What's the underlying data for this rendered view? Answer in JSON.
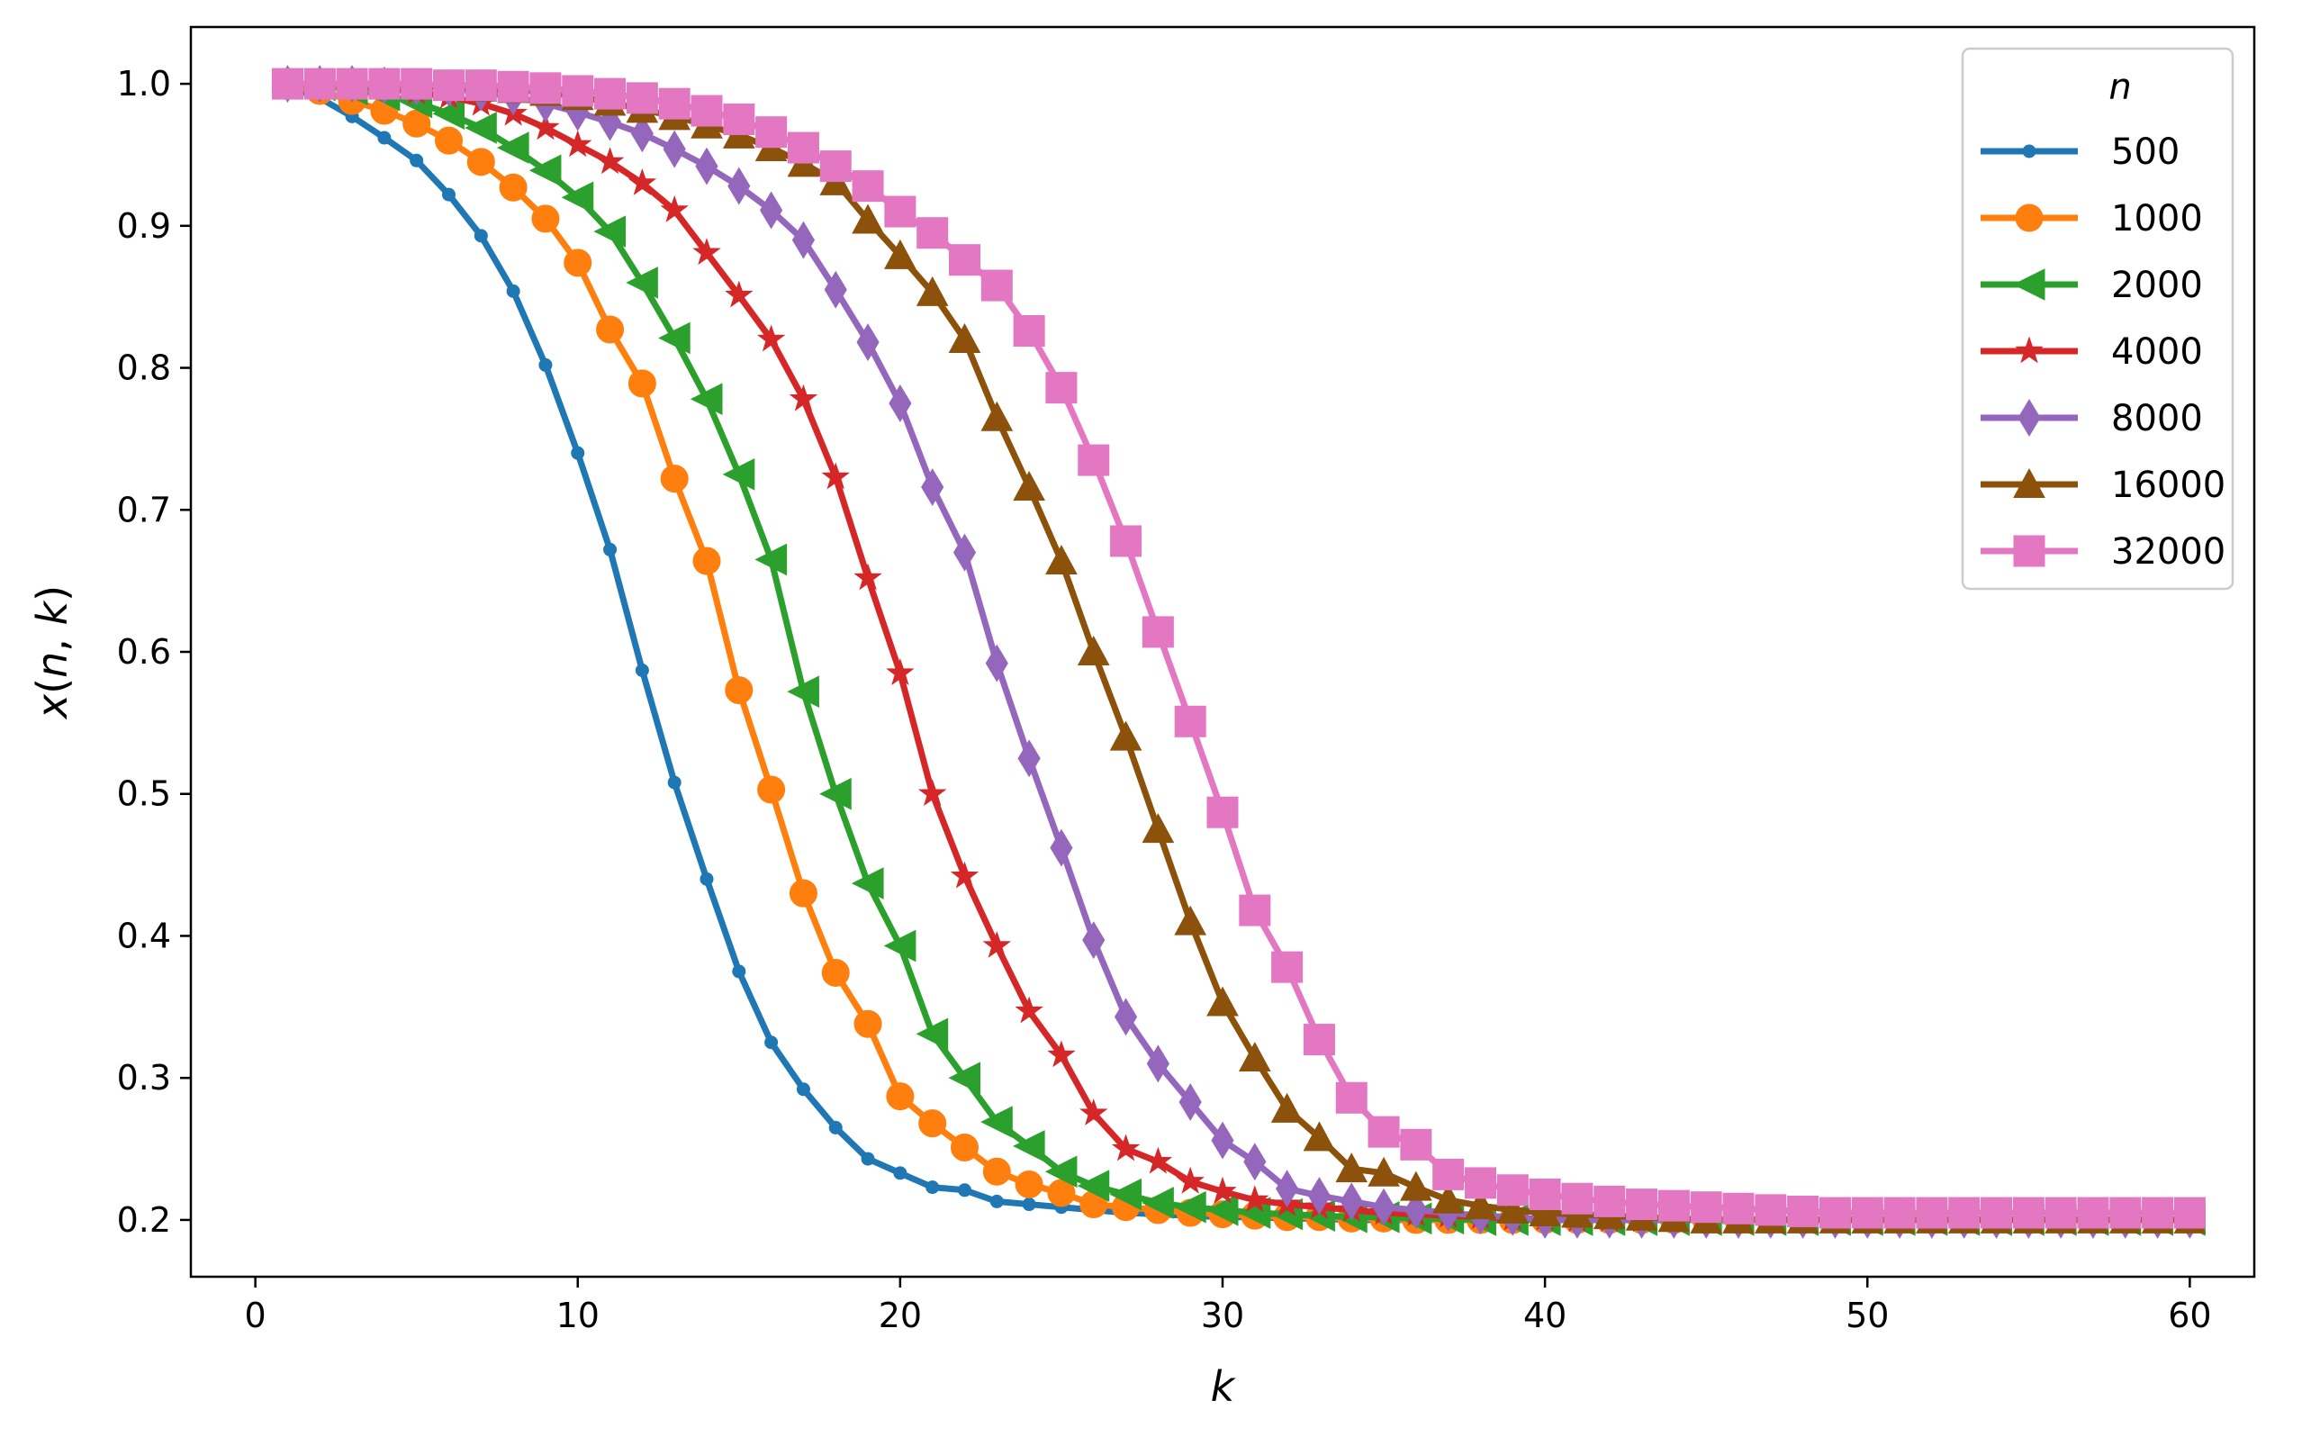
{
  "chart_data": {
    "type": "line",
    "xlabel": "k",
    "ylabel_parts": {
      "x": "x",
      "open": "(",
      "n": "n",
      "comma": ", ",
      "k": "k",
      "close": ")"
    },
    "xlim": [
      -2,
      62
    ],
    "ylim": [
      0.16,
      1.04
    ],
    "xticks": [
      0,
      10,
      20,
      30,
      40,
      50,
      60
    ],
    "yticks": [
      0.2,
      0.3,
      0.4,
      0.5,
      0.6,
      0.7,
      0.8,
      0.9,
      1.0
    ],
    "ytick_labels": [
      "0.2",
      "0.3",
      "0.4",
      "0.5",
      "0.6",
      "0.7",
      "0.8",
      "0.9",
      "1.0"
    ],
    "grid": false,
    "legend": {
      "title": "n",
      "placement": "top-right"
    },
    "series": [
      {
        "name": "500",
        "color": "#1f77b4",
        "marker": "circle-small",
        "n": 500
      },
      {
        "name": "1000",
        "color": "#ff7f0e",
        "marker": "circle",
        "n": 1000
      },
      {
        "name": "2000",
        "color": "#2ca02c",
        "marker": "triangle-left",
        "n": 2000
      },
      {
        "name": "4000",
        "color": "#d62728",
        "marker": "star",
        "n": 4000
      },
      {
        "name": "8000",
        "color": "#9467bd",
        "marker": "diamond-thin",
        "n": 8000
      },
      {
        "name": "16000",
        "color": "#8c510a",
        "marker": "triangle-up",
        "n": 16000
      },
      {
        "name": "32000",
        "color": "#e377c2",
        "marker": "square",
        "n": 32000
      }
    ],
    "x_values": [
      1,
      2,
      3,
      4,
      5,
      6,
      7,
      8,
      9,
      10,
      11,
      12,
      13,
      14,
      15,
      16,
      17,
      18,
      19,
      20,
      21,
      22,
      23,
      24,
      25,
      26,
      27,
      28,
      29,
      30,
      31,
      32,
      33,
      34,
      35,
      36,
      37,
      38,
      39,
      40,
      41,
      42,
      43,
      44,
      45,
      46,
      47,
      48,
      49,
      50,
      51,
      52,
      53,
      54,
      55,
      56,
      57,
      58,
      59,
      60
    ],
    "y_values": {
      "500": [
        0.998,
        0.99,
        0.977,
        0.962,
        0.946,
        0.922,
        0.893,
        0.854,
        0.802,
        0.74,
        0.672,
        0.587,
        0.508,
        0.44,
        0.375,
        0.325,
        0.292,
        0.265,
        0.243,
        0.233,
        0.223,
        0.221,
        0.213,
        0.211,
        0.209,
        0.207,
        0.205,
        0.204,
        0.203,
        0.202,
        0.202,
        0.201,
        0.201,
        0.2,
        0.2,
        0.2,
        0.2,
        0.2,
        0.2,
        0.2,
        0.2,
        0.2,
        0.2,
        0.2,
        0.2,
        0.2,
        0.2,
        0.2,
        0.2,
        0.2,
        0.2,
        0.2,
        0.2,
        0.2,
        0.2,
        0.2,
        0.2,
        0.2,
        0.2,
        0.2
      ],
      "1000": [
        0.999,
        0.995,
        0.988,
        0.981,
        0.972,
        0.96,
        0.945,
        0.927,
        0.905,
        0.874,
        0.827,
        0.789,
        0.722,
        0.664,
        0.573,
        0.503,
        0.43,
        0.374,
        0.338,
        0.287,
        0.268,
        0.251,
        0.234,
        0.225,
        0.219,
        0.211,
        0.209,
        0.207,
        0.205,
        0.204,
        0.203,
        0.202,
        0.202,
        0.201,
        0.201,
        0.2,
        0.2,
        0.2,
        0.2,
        0.2,
        0.2,
        0.2,
        0.2,
        0.2,
        0.2,
        0.2,
        0.2,
        0.2,
        0.2,
        0.2,
        0.2,
        0.2,
        0.2,
        0.2,
        0.2,
        0.2,
        0.2,
        0.2,
        0.2,
        0.2
      ],
      "2000": [
        1.0,
        0.999,
        0.996,
        0.992,
        0.987,
        0.979,
        0.969,
        0.955,
        0.939,
        0.92,
        0.896,
        0.86,
        0.821,
        0.778,
        0.725,
        0.665,
        0.572,
        0.5,
        0.437,
        0.393,
        0.331,
        0.3,
        0.269,
        0.252,
        0.234,
        0.224,
        0.218,
        0.212,
        0.209,
        0.207,
        0.205,
        0.204,
        0.203,
        0.202,
        0.202,
        0.201,
        0.201,
        0.2,
        0.2,
        0.2,
        0.2,
        0.2,
        0.2,
        0.2,
        0.2,
        0.2,
        0.2,
        0.2,
        0.2,
        0.2,
        0.2,
        0.2,
        0.2,
        0.2,
        0.2,
        0.2,
        0.2,
        0.2,
        0.2,
        0.2
      ],
      "4000": [
        1.0,
        1.0,
        0.999,
        0.997,
        0.994,
        0.991,
        0.986,
        0.979,
        0.969,
        0.957,
        0.945,
        0.93,
        0.911,
        0.881,
        0.851,
        0.82,
        0.778,
        0.723,
        0.652,
        0.585,
        0.5,
        0.442,
        0.393,
        0.347,
        0.316,
        0.275,
        0.25,
        0.241,
        0.227,
        0.22,
        0.214,
        0.211,
        0.209,
        0.207,
        0.205,
        0.204,
        0.203,
        0.202,
        0.201,
        0.201,
        0.2,
        0.2,
        0.2,
        0.2,
        0.2,
        0.2,
        0.2,
        0.2,
        0.2,
        0.2,
        0.2,
        0.2,
        0.2,
        0.2,
        0.2,
        0.2,
        0.2,
        0.2,
        0.2,
        0.2
      ],
      "8000": [
        1.0,
        1.0,
        1.0,
        0.999,
        0.998,
        0.997,
        0.994,
        0.991,
        0.986,
        0.98,
        0.973,
        0.965,
        0.954,
        0.942,
        0.928,
        0.911,
        0.89,
        0.855,
        0.818,
        0.775,
        0.716,
        0.67,
        0.592,
        0.525,
        0.462,
        0.397,
        0.343,
        0.31,
        0.283,
        0.256,
        0.241,
        0.222,
        0.217,
        0.213,
        0.209,
        0.207,
        0.205,
        0.203,
        0.202,
        0.2,
        0.2,
        0.2,
        0.2,
        0.2,
        0.2,
        0.2,
        0.2,
        0.2,
        0.2,
        0.2,
        0.2,
        0.2,
        0.2,
        0.2,
        0.2,
        0.2,
        0.2,
        0.2,
        0.2,
        0.2
      ],
      "16000": [
        1.0,
        1.0,
        1.0,
        1.0,
        0.999,
        0.998,
        0.997,
        0.996,
        0.994,
        0.991,
        0.987,
        0.982,
        0.977,
        0.971,
        0.964,
        0.955,
        0.944,
        0.931,
        0.904,
        0.879,
        0.853,
        0.82,
        0.765,
        0.716,
        0.664,
        0.6,
        0.54,
        0.475,
        0.41,
        0.353,
        0.314,
        0.278,
        0.258,
        0.236,
        0.233,
        0.223,
        0.214,
        0.21,
        0.207,
        0.205,
        0.204,
        0.203,
        0.202,
        0.201,
        0.2,
        0.2,
        0.2,
        0.2,
        0.2,
        0.2,
        0.2,
        0.2,
        0.2,
        0.2,
        0.2,
        0.2,
        0.2,
        0.2,
        0.2,
        0.2
      ],
      "32000": [
        1.0,
        1.0,
        1.0,
        1.0,
        1.0,
        0.999,
        0.999,
        0.998,
        0.997,
        0.995,
        0.993,
        0.99,
        0.986,
        0.981,
        0.975,
        0.966,
        0.955,
        0.942,
        0.928,
        0.91,
        0.895,
        0.876,
        0.858,
        0.826,
        0.786,
        0.735,
        0.678,
        0.614,
        0.551,
        0.487,
        0.418,
        0.378,
        0.327,
        0.286,
        0.262,
        0.253,
        0.232,
        0.226,
        0.221,
        0.218,
        0.215,
        0.213,
        0.211,
        0.21,
        0.209,
        0.208,
        0.207,
        0.206,
        0.205,
        0.205,
        0.205,
        0.205,
        0.205,
        0.205,
        0.205,
        0.205,
        0.205,
        0.205,
        0.205,
        0.205
      ]
    }
  }
}
